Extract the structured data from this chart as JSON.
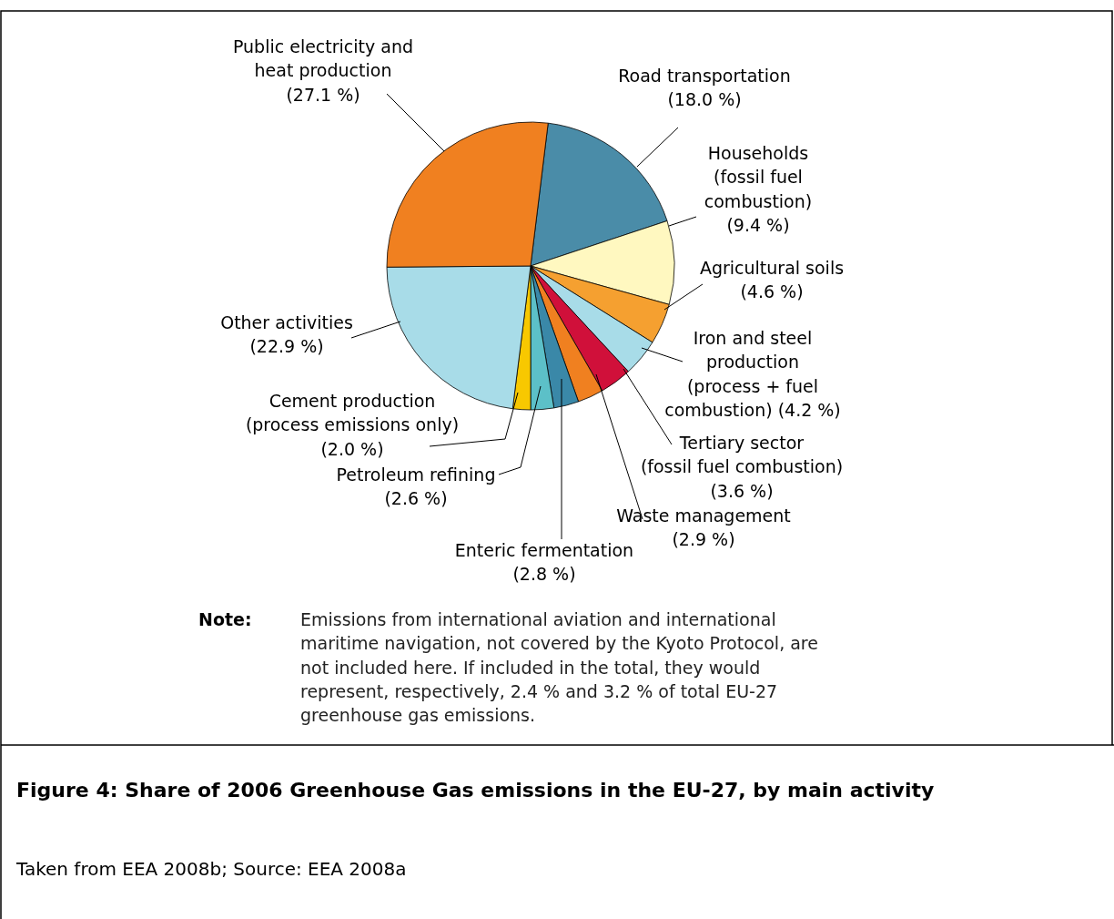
{
  "chart_data": {
    "type": "pie",
    "title": "Figure 4: Share of 2006 Greenhouse Gas emissions in the EU-27, by main activity",
    "categories": [
      "Road transportation",
      "Households\n(fossil fuel\ncombustion)",
      "Agricultural soils",
      "Iron and steel\nproduction\n(process + fuel\ncombustion)",
      "Tertiary sector\n(fossil fuel combustion)",
      "Waste management",
      "Enteric fermentation",
      "Petroleum refining",
      "Cement production\n(process emissions only)",
      "Other activities",
      "Public electricity and\nheat production"
    ],
    "values": [
      18.0,
      9.4,
      4.6,
      4.2,
      3.6,
      2.9,
      2.8,
      2.6,
      2.0,
      22.9,
      27.1
    ],
    "value_labels": [
      "(18.0 %)",
      "(9.4 %)",
      "(4.6 %)",
      "(4.2 %)",
      "(3.6 %)",
      "(2.9 %)",
      "(2.8 %)",
      "(2.6 %)",
      "(2.0 %)",
      "(22.9 %)",
      "(27.1 %)"
    ],
    "colors": [
      "#4a8ca8",
      "#fff8c0",
      "#f5a030",
      "#a8dce8",
      "#d0103a",
      "#f08020",
      "#3a88a8",
      "#5cc0c8",
      "#f8c800",
      "#a8dce8",
      "#f08020"
    ],
    "annotations": [
      "Note:",
      "Emissions from international aviation and international maritime navigation, not covered by the Kyoto Protocol, are not included here. If included in the total, they would represent, respectively, 2.4 % and 3.2 % of total EU-27 greenhouse gas emissions.",
      "Taken from EEA 2008b; Source: EEA 2008a"
    ]
  }
}
